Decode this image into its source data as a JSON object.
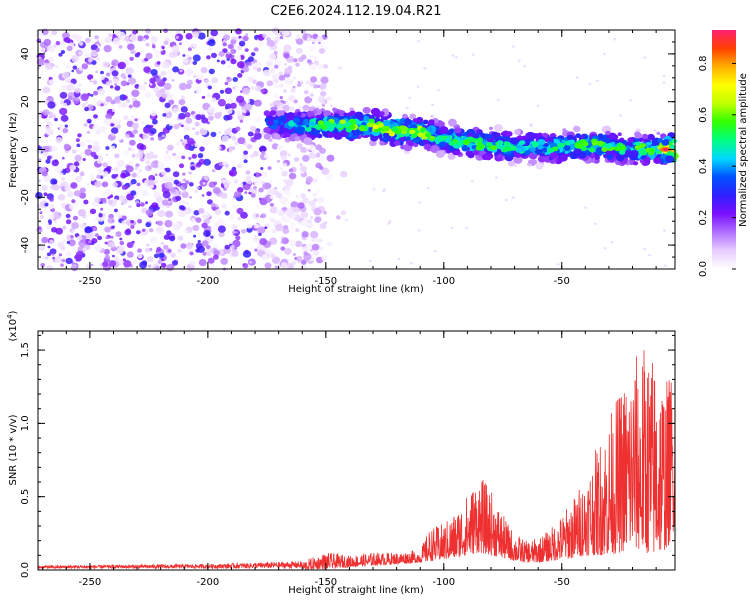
{
  "title": "C2E6.2024.112.19.04.R21",
  "chart_data": [
    {
      "type": "heatmap",
      "xlabel": "Height of straight line (km)",
      "ylabel": "Frequency (Hz)",
      "xlim": [
        -272,
        -2
      ],
      "ylim": [
        -50,
        50
      ],
      "x_ticks": [
        -250,
        -200,
        -150,
        -100,
        -50
      ],
      "x_tick_labels": [
        "-250",
        "-200",
        "-150",
        "-100",
        "-50"
      ],
      "y_ticks": [
        40,
        20,
        0,
        -20,
        -40
      ],
      "y_tick_labels": [
        "40",
        "20",
        "0",
        "-20",
        "-40"
      ],
      "colorbar": {
        "label": "Normalized spectral amplitude",
        "range": [
          0,
          0.93
        ],
        "ticks": [
          0.0,
          0.2,
          0.4,
          0.6,
          0.8
        ],
        "tick_labels": [
          "0.0",
          "0.2",
          "0.4",
          "0.6",
          "0.8"
        ],
        "colors": [
          "#ffffff",
          "#e6ccff",
          "#b070ff",
          "#7a10ff",
          "#3020ff",
          "#0050ff",
          "#00d8ff",
          "#00ff80",
          "#30ff00",
          "#c0ff00",
          "#ffff00",
          "#ffb000",
          "#ff4000",
          "#ff2070"
        ]
      },
      "noise_region": {
        "x_range": [
          -272,
          -150
        ],
        "level": 0.1
      },
      "trace": {
        "x": [
          -175,
          -160,
          -150,
          -140,
          -130,
          -120,
          -110,
          -100,
          -90,
          -80,
          -70,
          -60,
          -50,
          -40,
          -30,
          -20,
          -10,
          -2
        ],
        "y": [
          11,
          10,
          10,
          10,
          10,
          8,
          7,
          5,
          3,
          2,
          1,
          1,
          1,
          2,
          1,
          0,
          0,
          0
        ],
        "peak_amplitude": [
          0.35,
          0.5,
          0.55,
          0.6,
          0.65,
          0.65,
          0.6,
          0.55,
          0.55,
          0.55,
          0.5,
          0.5,
          0.55,
          0.55,
          0.55,
          0.55,
          0.6,
          0.9
        ]
      }
    },
    {
      "type": "line",
      "xlabel": "Height of straight line (km)",
      "ylabel": "SNR (10 * v/v)",
      "y_multiplier_label": "(x10",
      "y_multiplier_exp": "4",
      "xlim": [
        -272,
        -2
      ],
      "ylim": [
        0,
        1.63
      ],
      "x_ticks": [
        -250,
        -200,
        -150,
        -100,
        -50
      ],
      "x_tick_labels": [
        "-250",
        "-200",
        "-150",
        "-100",
        "-50"
      ],
      "y_ticks": [
        0.0,
        0.5,
        1.0,
        1.5
      ],
      "y_tick_labels": [
        "0.0",
        "0.5",
        "1.0",
        "1.5"
      ],
      "series": [
        {
          "color": "#ee3030",
          "envelope_x": [
            -272,
            -200,
            -160,
            -150,
            -140,
            -130,
            -120,
            -110,
            -106,
            -100,
            -95,
            -90,
            -85,
            -80,
            -75,
            -70,
            -65,
            -60,
            -55,
            -50,
            -45,
            -40,
            -35,
            -30,
            -25,
            -20,
            -15,
            -10,
            -5,
            -2
          ],
          "envelope_upper": [
            0.03,
            0.04,
            0.06,
            0.12,
            0.1,
            0.12,
            0.12,
            0.14,
            0.28,
            0.32,
            0.4,
            0.52,
            0.65,
            0.55,
            0.38,
            0.25,
            0.2,
            0.22,
            0.28,
            0.38,
            0.5,
            0.65,
            0.85,
            1.05,
            1.25,
            1.45,
            1.55,
            1.45,
            1.3,
            1.5
          ],
          "envelope_lower": [
            0.0,
            0.0,
            0.0,
            0.01,
            0.02,
            0.03,
            0.04,
            0.05,
            0.06,
            0.07,
            0.08,
            0.1,
            0.12,
            0.1,
            0.08,
            0.06,
            0.05,
            0.05,
            0.06,
            0.07,
            0.08,
            0.1,
            0.1,
            0.1,
            0.12,
            0.15,
            0.12,
            0.1,
            0.15,
            0.3
          ]
        }
      ]
    }
  ]
}
